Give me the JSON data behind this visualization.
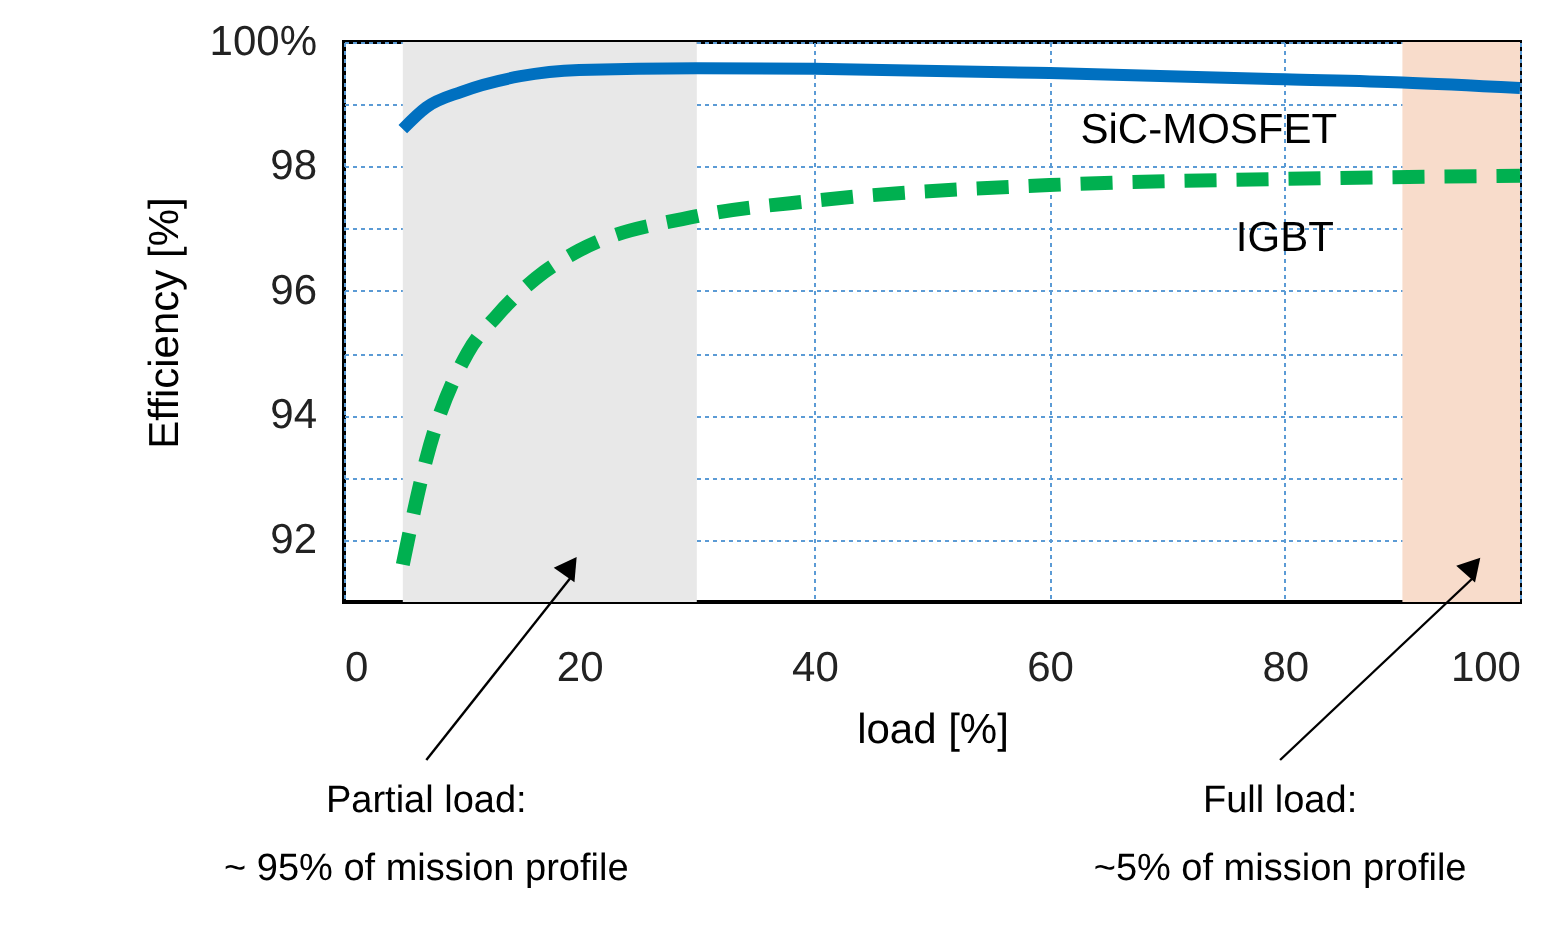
{
  "chart_data": {
    "type": "line",
    "xlabel": "load [%]",
    "ylabel": "Efficiency [%]",
    "xlim": [
      0,
      100
    ],
    "xticks": [
      0,
      20,
      40,
      60,
      80,
      100
    ],
    "ylim": [
      91,
      100
    ],
    "yticks": [
      {
        "value": 92,
        "label": "92"
      },
      {
        "value": 93,
        "label": null
      },
      {
        "value": 94,
        "label": "94"
      },
      {
        "value": 95,
        "label": null
      },
      {
        "value": 96,
        "label": "96"
      },
      {
        "value": 97,
        "label": null
      },
      {
        "value": 98,
        "label": "98"
      },
      {
        "value": 99,
        "label": null
      },
      {
        "value": 100,
        "label": "100%"
      }
    ],
    "grid": true,
    "series": [
      {
        "name": "SiC-MOSFET",
        "color": "#0070c0",
        "line_style": "solid",
        "x": [
          5,
          7,
          10,
          15,
          20,
          30,
          40,
          60,
          80,
          90,
          100
        ],
        "values": [
          98.6,
          98.95,
          99.2,
          99.45,
          99.55,
          99.58,
          99.57,
          99.5,
          99.4,
          99.35,
          99.26
        ]
      },
      {
        "name": "IGBT",
        "color": "#00b050",
        "line_style": "dashed",
        "x": [
          5,
          7,
          10.5,
          13,
          17,
          20,
          30,
          40,
          60,
          80,
          100
        ],
        "values": [
          91.6,
          93.3,
          95.0,
          95.6,
          96.3,
          96.65,
          97.2,
          97.45,
          97.7,
          97.8,
          97.85
        ]
      }
    ],
    "bands": [
      {
        "axis": "x",
        "from": 5,
        "to": 30,
        "color": "#e8e8e8",
        "label": "Partial load:\n~ 95% of mission profile"
      },
      {
        "axis": "x",
        "from": 90,
        "to": 100,
        "color": "#f8dccb",
        "label": "Full load:\n~5% of mission profile"
      }
    ]
  }
}
